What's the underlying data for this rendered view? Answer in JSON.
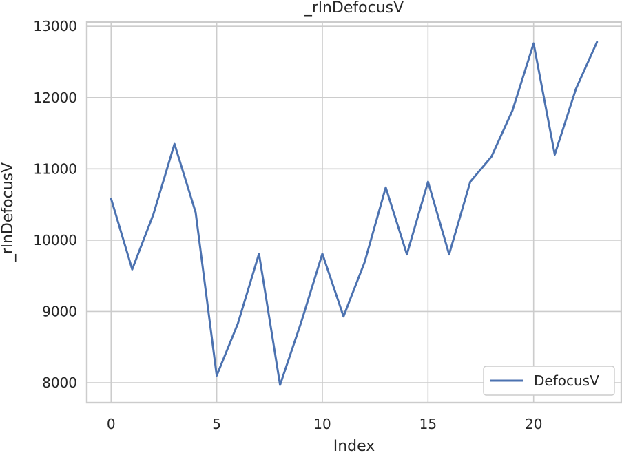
{
  "chart_data": {
    "type": "line",
    "title": "_rlnDefocusV",
    "xlabel": "Index",
    "ylabel": "_rlnDefocusV",
    "xlim": [
      -1.15,
      24.15
    ],
    "ylim": [
      7720,
      13060
    ],
    "xticks": [
      0,
      5,
      10,
      15,
      20
    ],
    "yticks": [
      8000,
      9000,
      10000,
      11000,
      12000,
      13000
    ],
    "grid": true,
    "legend_position": "lower-right",
    "series": [
      {
        "name": "DefocusV",
        "color": "#4c72b0",
        "x": [
          0,
          1,
          2,
          3,
          4,
          5,
          6,
          7,
          8,
          9,
          10,
          11,
          12,
          13,
          14,
          15,
          16,
          17,
          18,
          19,
          20,
          21,
          22,
          23
        ],
        "values": [
          10580,
          9590,
          10360,
          11350,
          10390,
          8100,
          8830,
          9810,
          7970,
          8850,
          9810,
          8930,
          9690,
          10740,
          9800,
          10820,
          9800,
          10820,
          11170,
          11820,
          12760,
          11200,
          12120,
          12780
        ]
      }
    ]
  }
}
